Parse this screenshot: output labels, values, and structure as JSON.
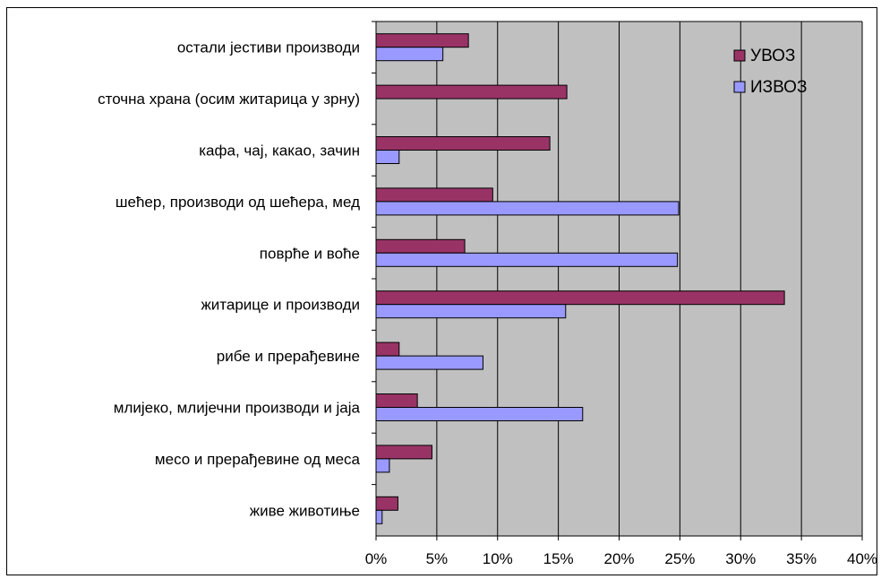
{
  "chart_data": {
    "type": "bar",
    "orientation": "horizontal",
    "categories": [
      "остали јестиви производи",
      "сточна храна (осим житарица у зрну)",
      "кафа, чај, какао, зачин",
      "шећер, производи од шећера, мед",
      "поврће и воће",
      "житарице и производи",
      "рибе и прерађевине",
      "млијеко, млијечни производи и јаја",
      "месо и прерађевине од меса",
      "живе животиње"
    ],
    "series": [
      {
        "name": "УВОЗ",
        "color": "#993366",
        "values": [
          7.6,
          15.7,
          14.3,
          9.6,
          7.3,
          33.6,
          1.9,
          3.4,
          4.6,
          1.8
        ]
      },
      {
        "name": "ИЗВОЗ",
        "color": "#9999FF",
        "values": [
          5.5,
          0,
          1.9,
          24.9,
          24.8,
          15.6,
          8.8,
          17.0,
          1.1,
          0.5
        ]
      }
    ],
    "xlim": [
      0,
      40
    ],
    "xticks": [
      "0%",
      "5%",
      "10%",
      "15%",
      "20%",
      "25%",
      "30%",
      "35%",
      "40%"
    ],
    "grid": true,
    "plot_background": "#C0C0C0",
    "legend_position": "top-right"
  }
}
